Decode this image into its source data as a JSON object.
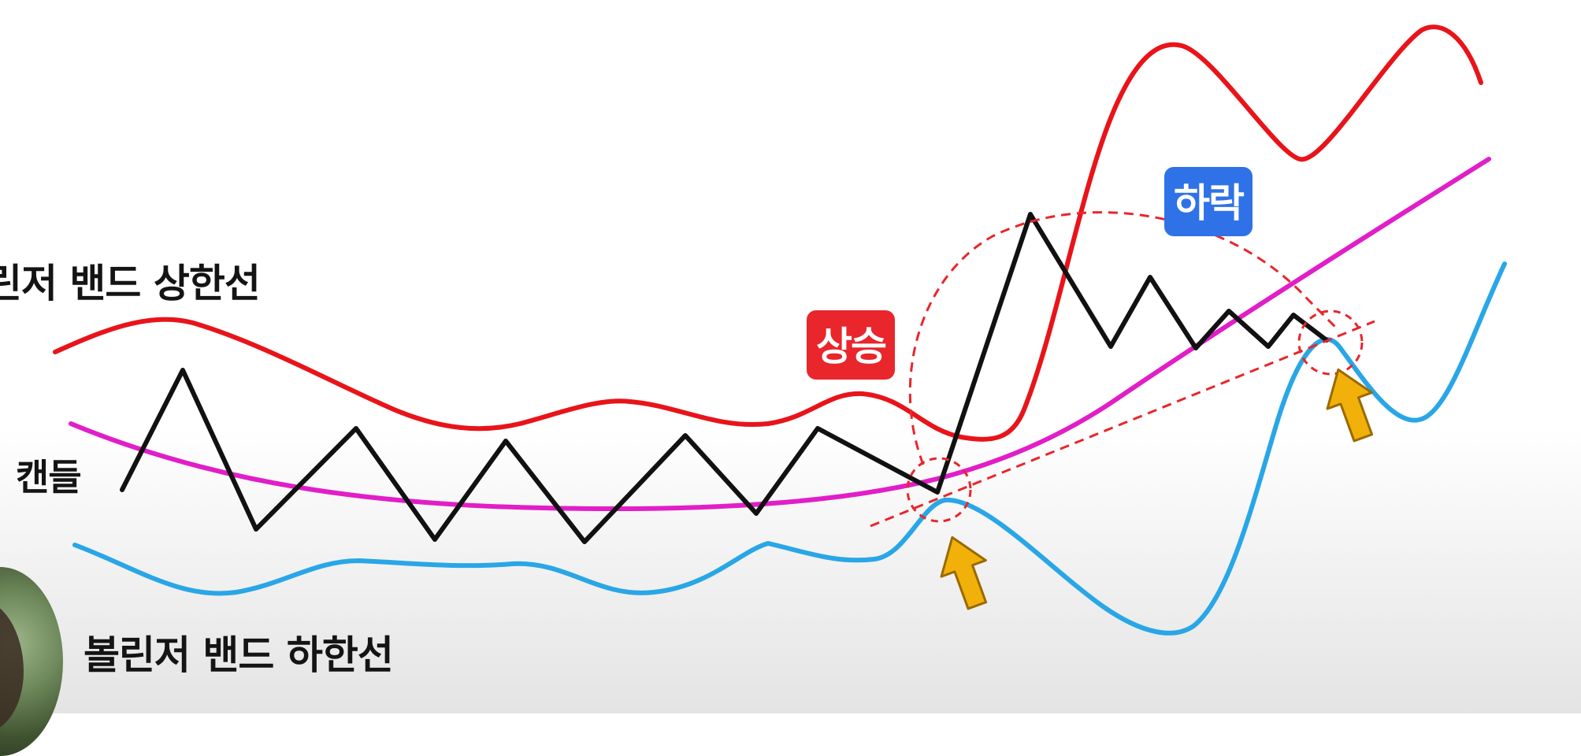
{
  "labels": {
    "upper_band": "린저 밴드 상한선",
    "candle": "캔들",
    "lower_band": "볼린저 밴드 하한선"
  },
  "tags": {
    "rise": "상승",
    "fall": "하락"
  },
  "colors": {
    "upper_band": "#e8141a",
    "middle_band": "#e11ec7",
    "lower_band": "#29a6e6",
    "candle": "#111111",
    "guide": "#e8262b",
    "arrow": "#f2b10a",
    "rise_tag": "#e8262b",
    "fall_tag": "#2f72e8"
  },
  "icons": {
    "arrow": "up-arrow-icon"
  }
}
